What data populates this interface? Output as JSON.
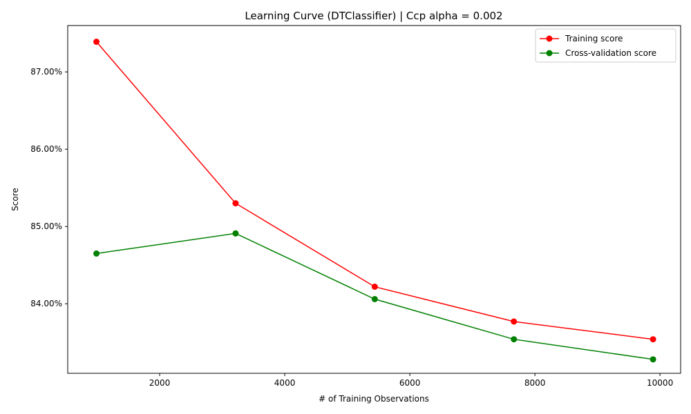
{
  "chart_data": {
    "type": "line",
    "title": "Learning Curve (DTClassifier) | Ccp alpha = 0.002",
    "xlabel": "# of Training Observations",
    "ylabel": "Score",
    "xlim": [
      530,
      10330
    ],
    "ylim": [
      0.831,
      0.876
    ],
    "x_ticks": [
      2000,
      4000,
      6000,
      8000,
      10000
    ],
    "x_tick_labels": [
      "2000",
      "4000",
      "6000",
      "8000",
      "10000"
    ],
    "y_ticks": [
      0.84,
      0.85,
      0.86,
      0.87
    ],
    "y_tick_labels": [
      "84.00%",
      "85.00%",
      "86.00%",
      "87.00%"
    ],
    "grid": false,
    "legend_position": "top-right",
    "x": [
      989,
      3214,
      5439,
      7664,
      9889
    ],
    "series": [
      {
        "name": "Training score",
        "color": "#ff0000",
        "marker": "circle",
        "values": [
          0.8739,
          0.853,
          0.8422,
          0.8377,
          0.8354
        ]
      },
      {
        "name": "Cross-validation score",
        "color": "#008000",
        "marker": "circle",
        "values": [
          0.8465,
          0.8491,
          0.8406,
          0.8354,
          0.8328
        ]
      }
    ]
  }
}
